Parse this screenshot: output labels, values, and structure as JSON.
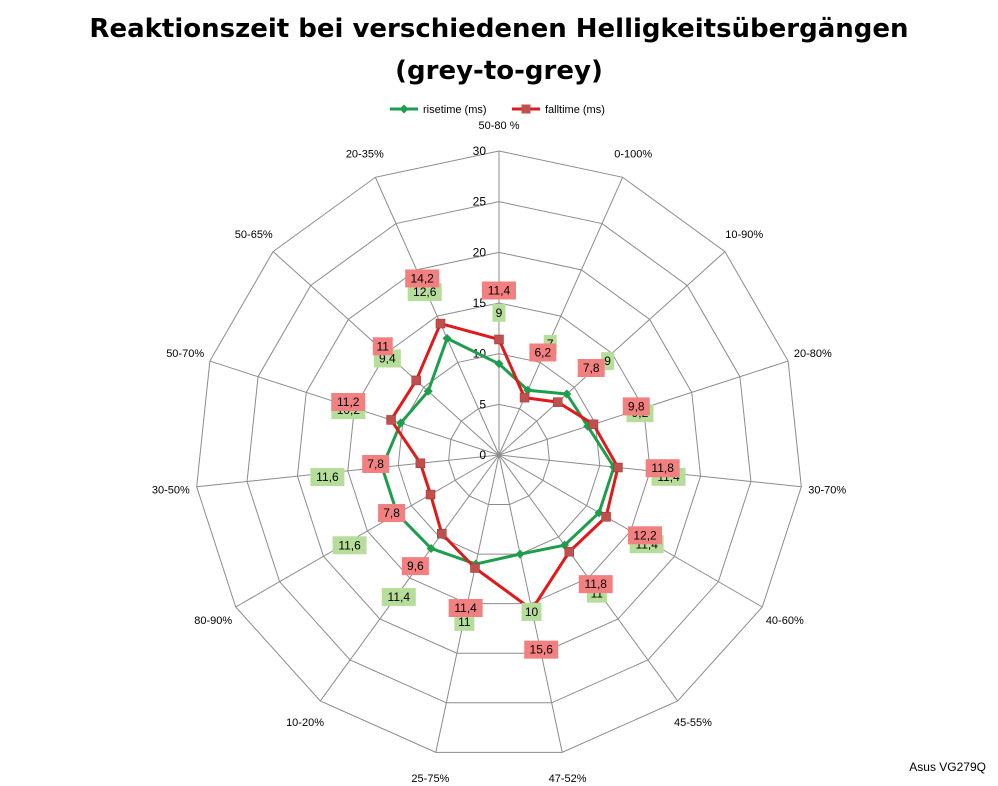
{
  "chart_data": {
    "type": "radar",
    "title": "Reaktionszeit bei verschiedenen Helligkeitsübergängen\n(grey-to-grey)",
    "categories": [
      "50-80 %",
      "0-100%",
      "10-90%",
      "20-80%",
      "30-70%",
      "40-60%",
      "45-55%",
      "47-52%",
      "25-75%",
      "10-20%",
      "80-90%",
      "30-50%",
      "50-70%",
      "50-65%",
      "20-35%"
    ],
    "radial_ticks": [
      "0",
      "5",
      "10",
      "15",
      "20",
      "25",
      "30"
    ],
    "rmax": 30,
    "legend_position": "top",
    "series": [
      {
        "name": "risetime (ms)",
        "color": "#1e9e4c",
        "label_bg": "#b7dd9b",
        "marker": "diamond",
        "values": [
          9,
          7,
          9,
          9.2,
          11.4,
          11.4,
          11,
          10,
          11,
          11.4,
          11.6,
          11.6,
          10.2,
          9.4,
          12.6
        ],
        "labels": [
          "9",
          "7",
          "9",
          "9,2",
          "11,4",
          "11,4",
          "11",
          "10",
          "11",
          "11,4",
          "11,6",
          "11,6",
          "10,2",
          "9,4",
          "12,6"
        ]
      },
      {
        "name": "falltime (ms)",
        "color": "#e01a1a",
        "label_bg": "#f28080",
        "marker": "square",
        "values": [
          11.4,
          6.2,
          7.8,
          9.8,
          11.8,
          12.2,
          11.8,
          15.6,
          11.4,
          9.6,
          7.8,
          7.8,
          11.2,
          11,
          14.2
        ],
        "labels": [
          "11,4",
          "6,2",
          "7,8",
          "9,8",
          "11,8",
          "12,2",
          "11,8",
          "15,6",
          "11,4",
          "9,6",
          "7,8",
          "7,8",
          "11,2",
          "11",
          "14,2"
        ]
      }
    ]
  },
  "watermark": "Asus VG279Q"
}
